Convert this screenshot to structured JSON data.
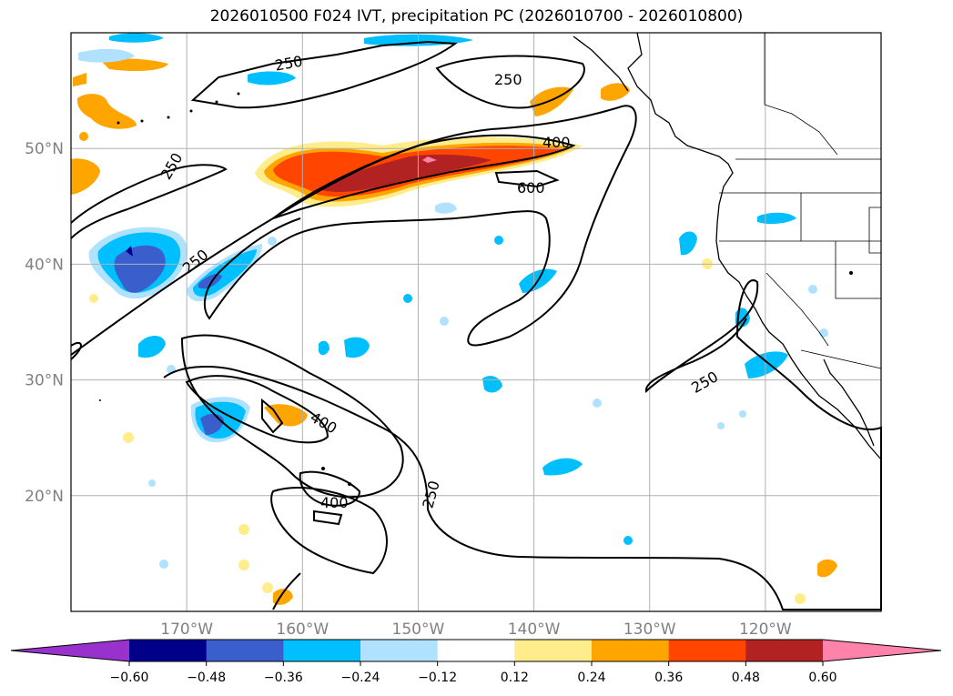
{
  "title": "2026010500 F024 IVT, precipitation PC (2026010700 - 2026010800)",
  "map": {
    "lon_range": [
      -180,
      -110
    ],
    "lat_range": [
      10,
      60
    ],
    "lon_ticks": [
      {
        "value": -170,
        "label": "170°W"
      },
      {
        "value": -160,
        "label": "160°W"
      },
      {
        "value": -150,
        "label": "150°W"
      },
      {
        "value": -140,
        "label": "140°W"
      },
      {
        "value": -130,
        "label": "130°W"
      },
      {
        "value": -120,
        "label": "120°W"
      }
    ],
    "lat_ticks": [
      {
        "value": 50,
        "label": "50°N"
      },
      {
        "value": 40,
        "label": "40°N"
      },
      {
        "value": 30,
        "label": "30°N"
      },
      {
        "value": 20,
        "label": "20°N"
      }
    ],
    "grid": true,
    "grid_color": "#b0b0b0",
    "contour_labels": [
      "250",
      "250",
      "250",
      "250",
      "250",
      "250",
      "400",
      "400",
      "400",
      "600"
    ]
  },
  "colorbar": {
    "ticks": [
      "−0.60",
      "−0.48",
      "−0.36",
      "−0.24",
      "−0.12",
      "0.12",
      "0.24",
      "0.36",
      "0.48",
      "0.60"
    ],
    "colors": [
      "#9932cc",
      "#00008b",
      "#3a5fcd",
      "#00bfff",
      "#b0e2ff",
      "#ffffff",
      "#ffec8b",
      "#ffa500",
      "#ff4500",
      "#b22222",
      "#ff82ab"
    ]
  }
}
